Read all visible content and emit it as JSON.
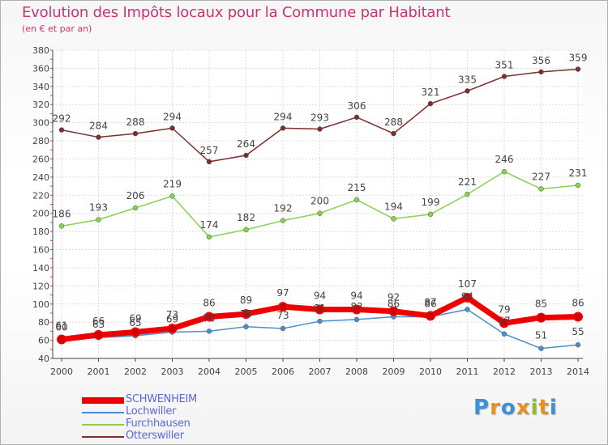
{
  "title": "Evolution des Impôts locaux pour la Commune par Habitant",
  "subtitle": "(en € et par an)",
  "logo": {
    "letters": [
      "P",
      "r",
      "o",
      "x",
      "i",
      "t",
      "i"
    ],
    "colors": [
      "#3d8fd8",
      "#e8901c",
      "#3d8fd8",
      "#e8901c",
      "#8fbf2a",
      "#e8901c",
      "#3d8fd8"
    ]
  },
  "chart_data": {
    "type": "line",
    "title": "Evolution des Impôts locaux pour la Commune par Habitant",
    "subtitle": "(en € et par an)",
    "xlabel": "",
    "ylabel": "",
    "categories": [
      "2000",
      "2001",
      "2002",
      "2003",
      "2004",
      "2005",
      "2006",
      "2007",
      "2008",
      "2009",
      "2010",
      "2011",
      "2012",
      "2013",
      "2014"
    ],
    "ylim": [
      40,
      380
    ],
    "yticks": [
      40,
      60,
      80,
      100,
      120,
      140,
      160,
      180,
      200,
      220,
      240,
      260,
      280,
      300,
      320,
      340,
      360,
      380
    ],
    "grid": true,
    "legend_position": "bottom-left",
    "series": [
      {
        "name": "SCHWENHEIM",
        "color": "#ee0000",
        "values": [
          61,
          66,
          69,
          73,
          86,
          89,
          97,
          94,
          94,
          92,
          87,
          107,
          79,
          85,
          86
        ],
        "labels": [
          "61",
          "66",
          "69",
          "73",
          "86",
          "89",
          "97",
          "94",
          "94",
          "92",
          "87",
          "107",
          "79",
          "85",
          "86"
        ]
      },
      {
        "name": "Lochwiller",
        "color": "#4a8fcc",
        "values": [
          60,
          63,
          65,
          69,
          70,
          75,
          73,
          81,
          83,
          86,
          86,
          94,
          67,
          51,
          55
        ],
        "labels": [
          "60",
          "63",
          "65",
          "69",
          "70",
          "75",
          "73",
          "81",
          "83",
          "86",
          "86",
          "94",
          "67",
          "51",
          "55"
        ]
      },
      {
        "name": "Furchhausen",
        "color": "#88d050",
        "values": [
          186,
          193,
          206,
          219,
          174,
          182,
          192,
          200,
          215,
          194,
          199,
          221,
          246,
          227,
          231
        ],
        "labels": [
          "186",
          "193",
          "206",
          "219",
          "174",
          "182",
          "192",
          "200",
          "215",
          "194",
          "199",
          "221",
          "246",
          "227",
          "231"
        ]
      },
      {
        "name": "Otterswiller",
        "color": "#7a2e2e",
        "values": [
          292,
          284,
          288,
          294,
          257,
          264,
          294,
          293,
          306,
          288,
          321,
          335,
          351,
          356,
          359
        ],
        "labels": [
          "292",
          "284",
          "288",
          "294",
          "257",
          "264",
          "294",
          "293",
          "306",
          "288",
          "321",
          "335",
          "351",
          "356",
          "359"
        ]
      }
    ]
  }
}
